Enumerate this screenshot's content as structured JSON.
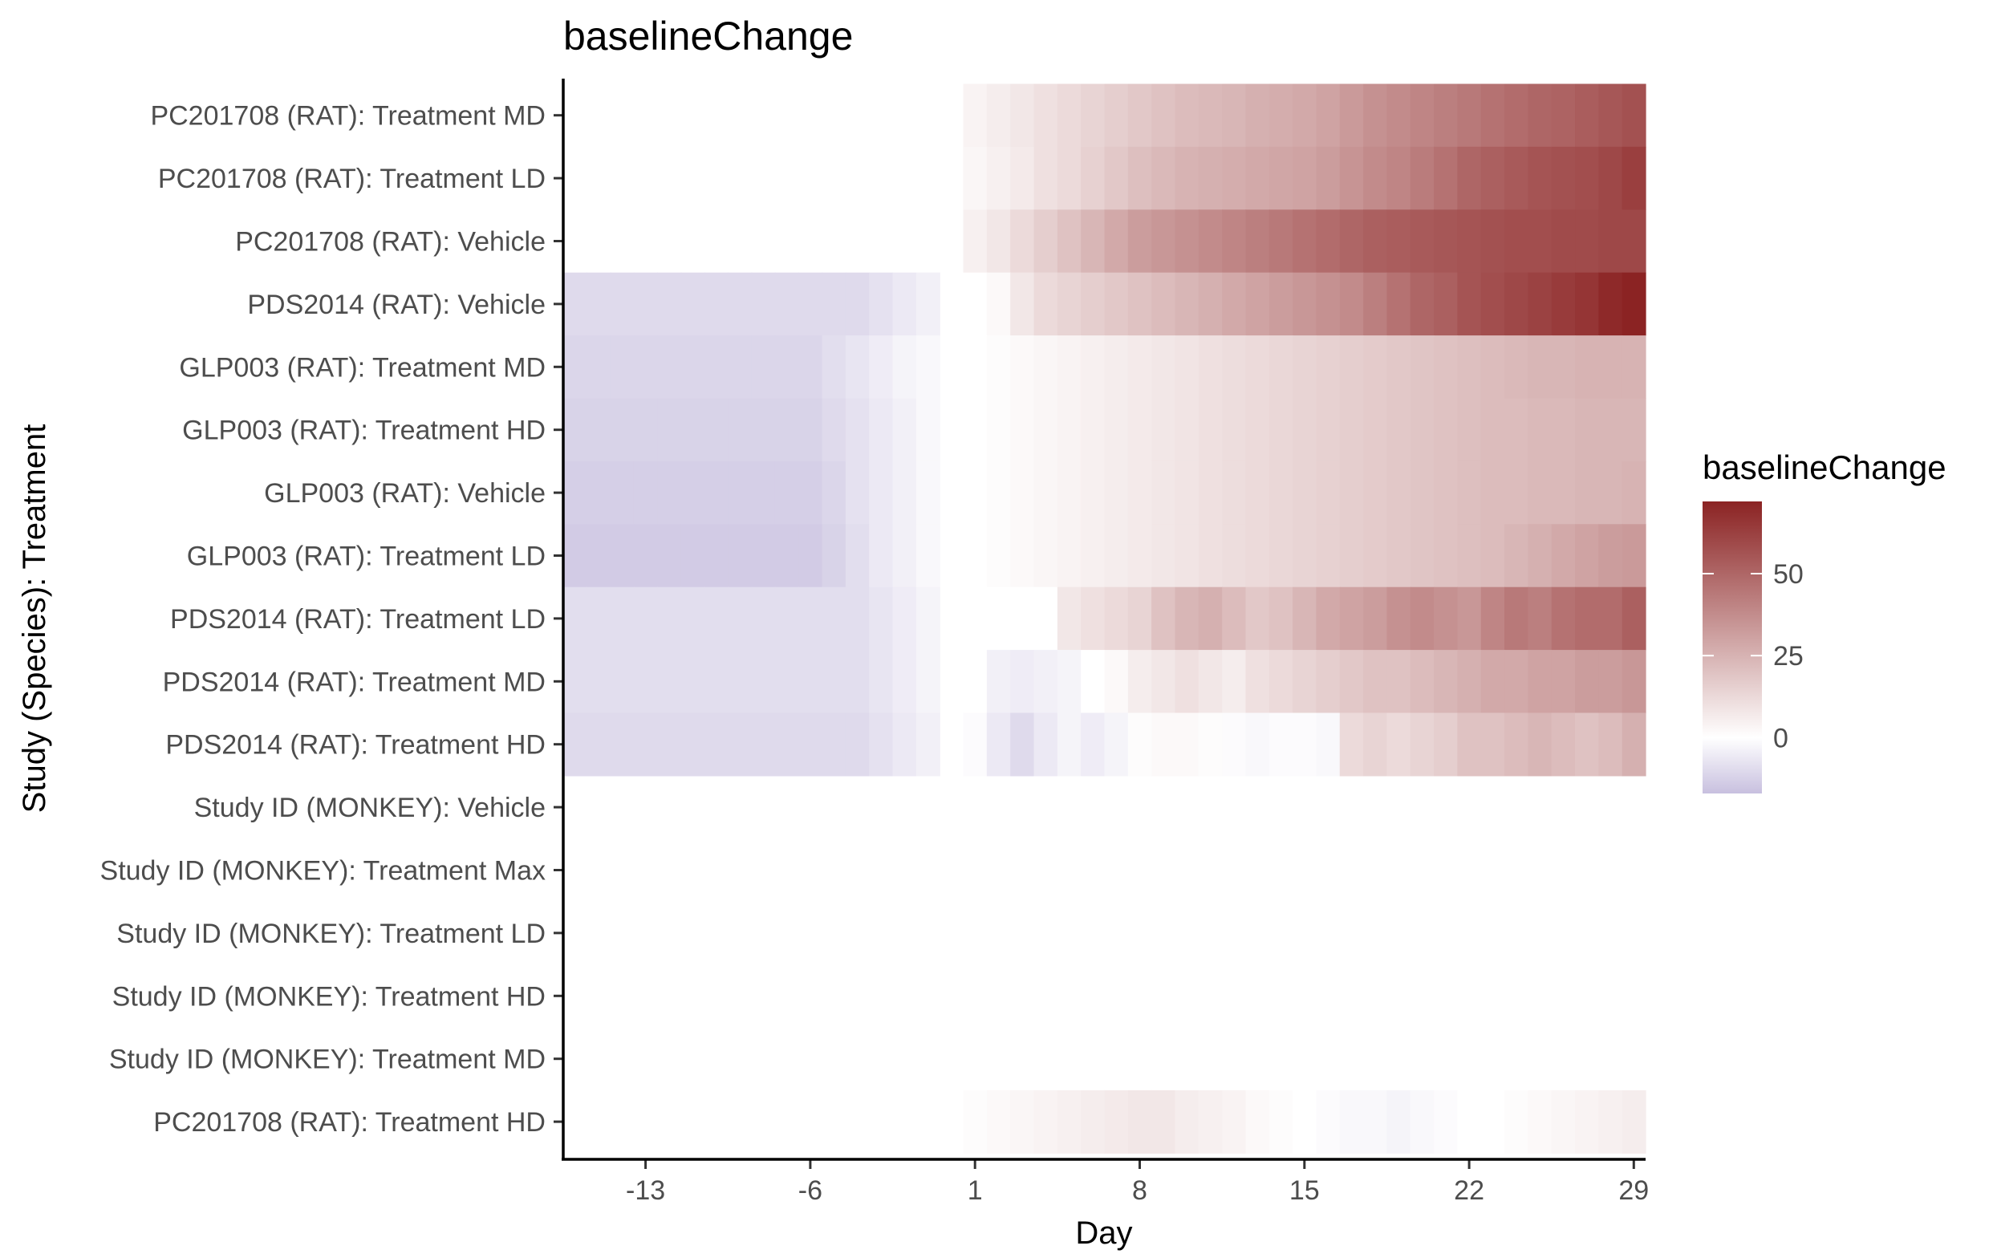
{
  "chart_data": {
    "type": "heatmap",
    "title": "baselineChange",
    "xlabel": "Day",
    "ylabel": "Study (Species): Treatment",
    "x_ticks": [
      -13,
      -6,
      1,
      8,
      15,
      22,
      29
    ],
    "xlim": [
      -16.5,
      29.5
    ],
    "legend": {
      "title": "baselineChange",
      "position": "right",
      "breaks": [
        50,
        25,
        0
      ],
      "range": [
        -17,
        72
      ],
      "colors": {
        "low": "#c8c0df",
        "mid": "#ffffff",
        "high": "#8b2323"
      }
    },
    "rows": [
      "PC201708 (RAT): Treatment MD",
      "PC201708 (RAT): Treatment LD",
      "PC201708 (RAT): Vehicle",
      "PDS2014 (RAT): Vehicle",
      "GLP003 (RAT): Treatment MD",
      "GLP003 (RAT): Treatment HD",
      "GLP003 (RAT): Vehicle",
      "GLP003 (RAT): Treatment LD",
      "PDS2014 (RAT): Treatment LD",
      "PDS2014 (RAT): Treatment MD",
      "PDS2014 (RAT): Treatment HD",
      "Study ID (MONKEY): Vehicle",
      "Study ID (MONKEY): Treatment Max",
      "Study ID (MONKEY): Treatment LD",
      "Study ID (MONKEY): Treatment HD",
      "Study ID (MONKEY): Treatment MD",
      "PC201708 (RAT): Treatment HD"
    ],
    "days": [
      -16,
      -15,
      -14,
      -13,
      -12,
      -11,
      -10,
      -9,
      -8,
      -7,
      -6,
      -5,
      -4,
      -3,
      -2,
      -1,
      0,
      1,
      2,
      3,
      4,
      5,
      6,
      7,
      8,
      9,
      10,
      11,
      12,
      13,
      14,
      15,
      16,
      17,
      18,
      19,
      20,
      21,
      22,
      23,
      24,
      25,
      26,
      27,
      28,
      29
    ],
    "values": [
      [
        null,
        null,
        null,
        null,
        null,
        null,
        null,
        null,
        null,
        null,
        null,
        null,
        null,
        null,
        null,
        null,
        null,
        4,
        6,
        8,
        10,
        12,
        14,
        16,
        18,
        20,
        22,
        23,
        24,
        26,
        27,
        28,
        30,
        33,
        36,
        38,
        40,
        42,
        44,
        46,
        48,
        50,
        51,
        53,
        55,
        57
      ],
      [
        null,
        null,
        null,
        null,
        null,
        null,
        null,
        null,
        null,
        null,
        null,
        null,
        null,
        null,
        null,
        null,
        null,
        3,
        5,
        7,
        10,
        12,
        15,
        18,
        21,
        23,
        25,
        26,
        27,
        28,
        29,
        30,
        32,
        35,
        38,
        40,
        43,
        46,
        50,
        52,
        54,
        56,
        57,
        58,
        60,
        63
      ],
      [
        null,
        null,
        null,
        null,
        null,
        null,
        null,
        null,
        null,
        null,
        null,
        null,
        null,
        null,
        null,
        null,
        null,
        5,
        8,
        12,
        16,
        20,
        24,
        28,
        32,
        34,
        36,
        38,
        40,
        42,
        44,
        46,
        48,
        50,
        52,
        53,
        54,
        55,
        56,
        57,
        58,
        58,
        59,
        59,
        60,
        60
      ],
      [
        -10,
        -10,
        -10,
        -10,
        -10,
        -10,
        -10,
        -10,
        -10,
        -10,
        -10,
        -10,
        -10,
        -8,
        -6,
        -4,
        null,
        0,
        2,
        8,
        12,
        14,
        16,
        18,
        20,
        22,
        24,
        26,
        28,
        30,
        32,
        34,
        36,
        38,
        42,
        46,
        50,
        52,
        56,
        58,
        60,
        62,
        64,
        66,
        70,
        72
      ],
      [
        -11,
        -11,
        -11,
        -11,
        -11,
        -11,
        -11,
        -11,
        -11,
        -11,
        -11,
        -9,
        -7,
        -5,
        -3,
        -2,
        null,
        0,
        1,
        2,
        3,
        4,
        5,
        6,
        7,
        8,
        9,
        10,
        11,
        12,
        13,
        14,
        15,
        16,
        17,
        18,
        19,
        20,
        21,
        22,
        23,
        24,
        24,
        25,
        25,
        25
      ],
      [
        -12,
        -12,
        -12,
        -12,
        -12,
        -12,
        -12,
        -12,
        -12,
        -12,
        -12,
        -10,
        -8,
        -6,
        -4,
        -2,
        null,
        0,
        1,
        2,
        3,
        4,
        5,
        6,
        7,
        8,
        9,
        10,
        11,
        12,
        13,
        14,
        15,
        16,
        17,
        18,
        19,
        20,
        21,
        22,
        22,
        23,
        23,
        24,
        24,
        24
      ],
      [
        -13,
        -13,
        -13,
        -13,
        -13,
        -13,
        -13,
        -13,
        -13,
        -13,
        -13,
        -11,
        -8,
        -6,
        -4,
        -2,
        null,
        0,
        1,
        2,
        3,
        4,
        5,
        6,
        7,
        8,
        9,
        10,
        11,
        12,
        13,
        14,
        15,
        16,
        17,
        18,
        19,
        20,
        21,
        22,
        22,
        23,
        23,
        24,
        24,
        25
      ],
      [
        -14,
        -14,
        -14,
        -14,
        -14,
        -14,
        -14,
        -14,
        -14,
        -14,
        -14,
        -12,
        -9,
        -6,
        -4,
        -2,
        null,
        0,
        1,
        2,
        3,
        4,
        5,
        6,
        7,
        8,
        9,
        10,
        11,
        12,
        13,
        14,
        15,
        16,
        17,
        18,
        19,
        20,
        21,
        22,
        24,
        26,
        28,
        30,
        32,
        33
      ],
      [
        -9,
        -9,
        -9,
        -9,
        -9,
        -9,
        -9,
        -9,
        -9,
        -9,
        -9,
        -9,
        -9,
        -7,
        -5,
        -3,
        null,
        0,
        0,
        0,
        0,
        8,
        10,
        12,
        14,
        20,
        24,
        26,
        22,
        18,
        20,
        24,
        28,
        30,
        32,
        36,
        38,
        36,
        34,
        40,
        44,
        42,
        46,
        48,
        48,
        52
      ],
      [
        -9,
        -9,
        -9,
        -9,
        -9,
        -9,
        -9,
        -9,
        -9,
        -9,
        -9,
        -9,
        -9,
        -7,
        -5,
        -3,
        null,
        0,
        -4,
        -5,
        -4,
        -3,
        0,
        2,
        6,
        8,
        10,
        8,
        6,
        10,
        12,
        14,
        16,
        18,
        20,
        20,
        22,
        24,
        26,
        28,
        28,
        30,
        30,
        32,
        32,
        34
      ],
      [
        -10,
        -10,
        -10,
        -10,
        -10,
        -10,
        -10,
        -10,
        -10,
        -10,
        -10,
        -10,
        -10,
        -8,
        -6,
        -4,
        null,
        -1,
        -6,
        -10,
        -6,
        -3,
        -5,
        -3,
        1,
        2,
        2,
        1,
        -1,
        -2,
        -1,
        -1,
        -2,
        12,
        14,
        12,
        14,
        16,
        20,
        20,
        22,
        24,
        22,
        20,
        22,
        26
      ],
      [
        null,
        null,
        null,
        null,
        null,
        null,
        null,
        null,
        null,
        null,
        null,
        null,
        null,
        null,
        null,
        null,
        null,
        null,
        null,
        null,
        null,
        null,
        null,
        null,
        null,
        null,
        null,
        null,
        null,
        null,
        null,
        null,
        null,
        null,
        null,
        null,
        null,
        null,
        null,
        null,
        null,
        null,
        null,
        null,
        null,
        null
      ],
      [
        null,
        null,
        null,
        null,
        null,
        null,
        null,
        null,
        null,
        null,
        null,
        null,
        null,
        null,
        null,
        null,
        null,
        null,
        null,
        null,
        null,
        null,
        null,
        null,
        null,
        null,
        null,
        null,
        null,
        null,
        null,
        null,
        null,
        null,
        null,
        null,
        null,
        null,
        null,
        null,
        null,
        null,
        null,
        null,
        null,
        null
      ],
      [
        null,
        null,
        null,
        null,
        null,
        null,
        null,
        null,
        null,
        null,
        null,
        null,
        null,
        null,
        null,
        null,
        null,
        null,
        null,
        null,
        null,
        null,
        null,
        null,
        null,
        null,
        null,
        null,
        null,
        null,
        null,
        null,
        null,
        null,
        null,
        null,
        null,
        null,
        null,
        null,
        null,
        null,
        null,
        null,
        null,
        null
      ],
      [
        null,
        null,
        null,
        null,
        null,
        null,
        null,
        null,
        null,
        null,
        null,
        null,
        null,
        null,
        null,
        null,
        null,
        null,
        null,
        null,
        null,
        null,
        null,
        null,
        null,
        null,
        null,
        null,
        null,
        null,
        null,
        null,
        null,
        null,
        null,
        null,
        null,
        null,
        null,
        null,
        null,
        null,
        null,
        null,
        null,
        null
      ],
      [
        null,
        null,
        null,
        null,
        null,
        null,
        null,
        null,
        null,
        null,
        null,
        null,
        null,
        null,
        null,
        null,
        null,
        null,
        null,
        null,
        null,
        null,
        null,
        null,
        null,
        null,
        null,
        null,
        null,
        null,
        null,
        null,
        null,
        null,
        null,
        null,
        null,
        null,
        null,
        null,
        null,
        null,
        null,
        null,
        null,
        null
      ],
      [
        null,
        null,
        null,
        null,
        null,
        null,
        null,
        null,
        null,
        null,
        null,
        null,
        null,
        null,
        null,
        null,
        null,
        1,
        2,
        3,
        4,
        5,
        6,
        7,
        8,
        8,
        6,
        5,
        4,
        2,
        1,
        0,
        -1,
        -2,
        -2,
        -3,
        -2,
        -1,
        0,
        0,
        1,
        2,
        3,
        4,
        5,
        6
      ]
    ]
  }
}
